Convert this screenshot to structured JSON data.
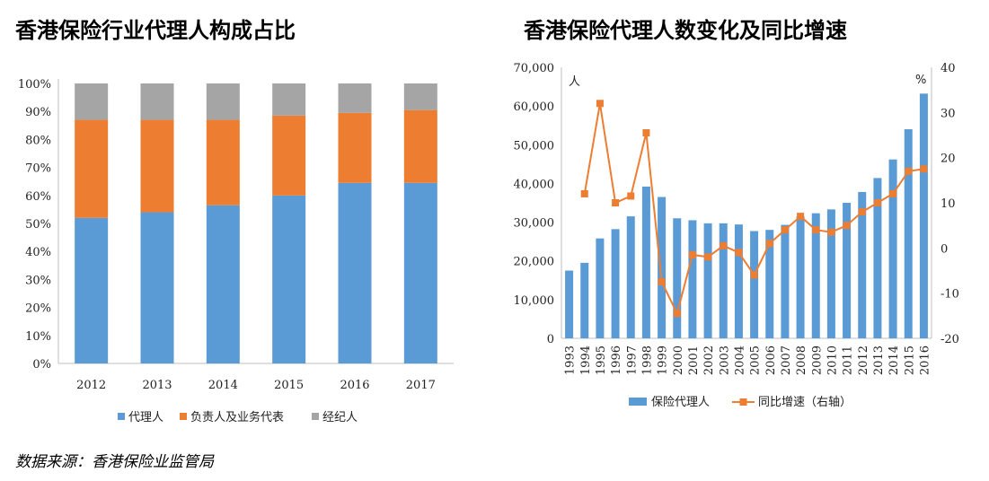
{
  "source_note": "数据来源：香港保险业监管局",
  "chart_data": [
    {
      "type": "bar",
      "stacked": true,
      "title": "香港保险行业代理人构成占比",
      "categories": [
        "2012",
        "2013",
        "2014",
        "2015",
        "2016",
        "2017"
      ],
      "series": [
        {
          "name": "代理人",
          "color": "#5b9bd5",
          "values": [
            52,
            54,
            56.5,
            60,
            64.5,
            64.5
          ]
        },
        {
          "name": "负责人及业务代表",
          "color": "#ed7d31",
          "values": [
            35,
            33,
            30.5,
            28.5,
            25,
            26
          ]
        },
        {
          "name": "经纪人",
          "color": "#a5a5a5",
          "values": [
            13,
            13,
            13,
            11.5,
            10.5,
            9.5
          ]
        }
      ],
      "yticks": [
        "0%",
        "10%",
        "20%",
        "30%",
        "40%",
        "50%",
        "60%",
        "70%",
        "80%",
        "90%",
        "100%"
      ],
      "ylim": [
        0,
        100
      ],
      "legend_position": "bottom"
    },
    {
      "type": "bar+line",
      "title": "香港保险代理人数变化及同比增速",
      "categories": [
        "1993",
        "1994",
        "1995",
        "1996",
        "1997",
        "1998",
        "1999",
        "2000",
        "2001",
        "2002",
        "2003",
        "2004",
        "2005",
        "2006",
        "2007",
        "2008",
        "2009",
        "2010",
        "2011",
        "2012",
        "2013",
        "2014",
        "2015",
        "2016"
      ],
      "bars": {
        "name": "保险代理人",
        "color": "#5b9bd5",
        "values": [
          17500,
          19500,
          25800,
          28200,
          31500,
          39200,
          36500,
          31000,
          30500,
          29700,
          29700,
          29400,
          27700,
          28000,
          29300,
          31500,
          32300,
          33300,
          35000,
          37800,
          41400,
          46200,
          54000,
          63200
        ]
      },
      "line": {
        "name": "同比增速（右轴）",
        "color": "#ed7d31",
        "values": [
          null,
          12,
          32,
          10,
          11.5,
          25.5,
          -7.5,
          -14.5,
          -1.5,
          -2,
          0.5,
          -1,
          -6,
          1,
          4,
          7,
          4,
          3.5,
          5,
          8,
          10,
          12,
          17,
          17.5
        ]
      },
      "left_axis": {
        "unit": "人",
        "ylim": [
          0,
          70000
        ],
        "ticks": [
          "0",
          "10,000",
          "20,000",
          "30,000",
          "40,000",
          "50,000",
          "60,000",
          "70,000"
        ]
      },
      "right_axis": {
        "unit": "%",
        "ylim": [
          -20,
          40
        ],
        "ticks": [
          "-20",
          "-10",
          "0",
          "10",
          "20",
          "30",
          "40"
        ]
      },
      "legend_position": "bottom"
    }
  ]
}
